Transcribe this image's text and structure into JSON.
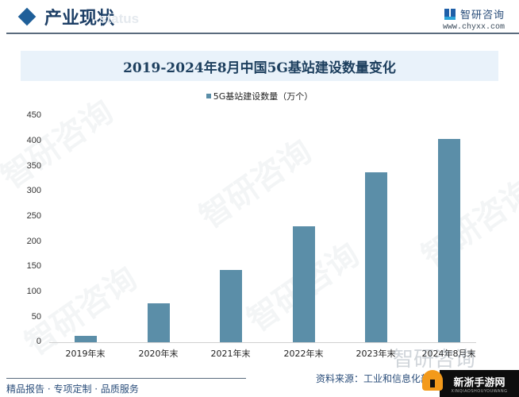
{
  "header": {
    "section_title": "产业现状",
    "ghost_text": "status",
    "diamond_icon": "diamond-bullet",
    "logo": {
      "icon": "chyxx-logo-icon",
      "name": "智研咨询",
      "url": "www.chyxx.com"
    }
  },
  "chart": {
    "title": "2019-2024年8月中国5G基站建设数量变化",
    "legend_label": "5G基站建设数量（万个）",
    "bar_color": "#5b8ea8",
    "y_ticks": [
      "450",
      "400",
      "350",
      "300",
      "250",
      "200",
      "150",
      "100",
      "50",
      "0"
    ],
    "x_labels": [
      "2019年末",
      "2020年末",
      "2021年末",
      "2022年末",
      "2023年末",
      "2024年8月末"
    ]
  },
  "chart_data": {
    "type": "bar",
    "title": "2019-2024年8月中国5G基站建设数量变化",
    "categories": [
      "2019年末",
      "2020年末",
      "2021年末",
      "2022年末",
      "2023年末",
      "2024年8月末"
    ],
    "series": [
      {
        "name": "5G基站建设数量（万个）",
        "values": [
          13,
          77,
          143,
          231,
          338,
          404
        ]
      }
    ],
    "xlabel": "",
    "ylabel": "",
    "ylim": [
      0,
      450
    ],
    "yticks": [
      0,
      50,
      100,
      150,
      200,
      250,
      300,
      350,
      400,
      450
    ],
    "grid": false,
    "legend_position": "top"
  },
  "footer": {
    "tagline": "精品报告 · 专项定制 · 品质服务",
    "source": "资料来源：工业和信息化部，智研咨询整理",
    "watermark": "智研咨询",
    "badge_main": "新浙手游网",
    "badge_sub": "XINQIAOSHOUYOUWANG"
  }
}
